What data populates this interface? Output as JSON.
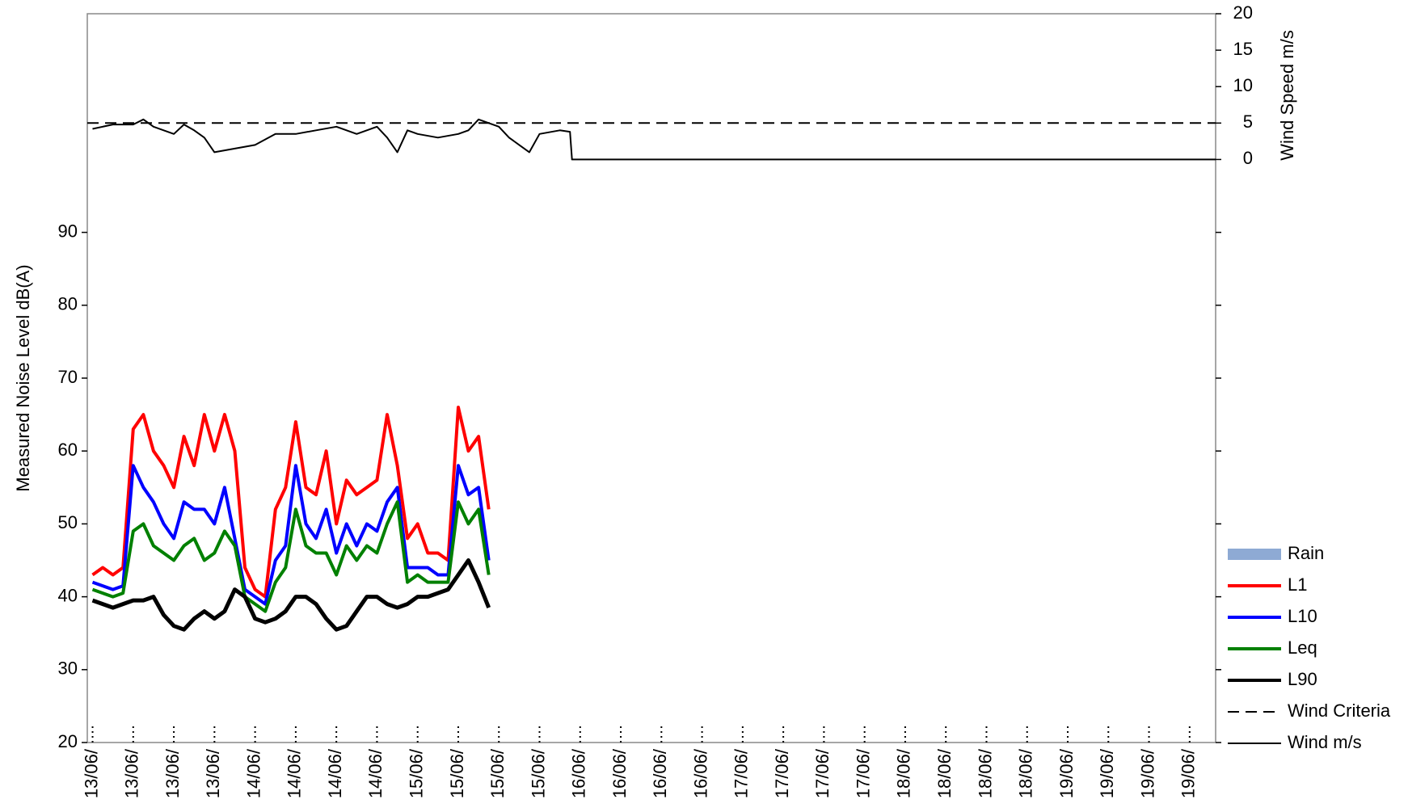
{
  "chart_data": {
    "type": "line",
    "ylabel": "Measured Noise Level dB(A)",
    "y2label": "Wind Speed m/s",
    "ylim": [
      20,
      120
    ],
    "yticks": [
      20,
      30,
      40,
      50,
      60,
      70,
      80,
      90
    ],
    "y2lim": [
      -80,
      20
    ],
    "y2ticks": [
      0,
      5,
      10,
      15,
      20
    ],
    "xlim": [
      -0.13,
      27.64
    ],
    "xticks": [
      {
        "value": 0,
        "label": "13/06/"
      },
      {
        "value": 1,
        "label": "13/06/"
      },
      {
        "value": 2,
        "label": "13/06/"
      },
      {
        "value": 3,
        "label": "13/06/"
      },
      {
        "value": 4,
        "label": "14/06/"
      },
      {
        "value": 5,
        "label": "14/06/"
      },
      {
        "value": 6,
        "label": "14/06/"
      },
      {
        "value": 7,
        "label": "14/06/"
      },
      {
        "value": 8,
        "label": "15/06/"
      },
      {
        "value": 9,
        "label": "15/06/"
      },
      {
        "value": 10,
        "label": "15/06/"
      },
      {
        "value": 11,
        "label": "15/06/"
      },
      {
        "value": 12,
        "label": "16/06/"
      },
      {
        "value": 13,
        "label": "16/06/"
      },
      {
        "value": 14,
        "label": "16/06/"
      },
      {
        "value": 15,
        "label": "16/06/"
      },
      {
        "value": 16,
        "label": "17/06/"
      },
      {
        "value": 17,
        "label": "17/06/"
      },
      {
        "value": 18,
        "label": "17/06/"
      },
      {
        "value": 19,
        "label": "17/06/"
      },
      {
        "value": 20,
        "label": "18/06/"
      },
      {
        "value": 21,
        "label": "18/06/"
      },
      {
        "value": 22,
        "label": "18/06/"
      },
      {
        "value": 23,
        "label": "18/06/"
      },
      {
        "value": 24,
        "label": "19/06/"
      },
      {
        "value": 25,
        "label": "19/06/"
      },
      {
        "value": 26,
        "label": "19/06/"
      },
      {
        "value": 27,
        "label": "19/06/"
      }
    ],
    "legend": "right",
    "series": [
      {
        "name": "Rain",
        "color": "#8eaad4",
        "x": [],
        "values": []
      },
      {
        "name": "L1",
        "color": "#ff0000",
        "width": 4,
        "x": [
          0,
          0.25,
          0.5,
          0.75,
          1,
          1.25,
          1.5,
          1.75,
          2,
          2.25,
          2.5,
          2.75,
          3,
          3.25,
          3.5,
          3.75,
          4,
          4.25,
          4.5,
          4.75,
          5,
          5.25,
          5.5,
          5.75,
          6,
          6.25,
          6.5,
          6.75,
          7,
          7.25,
          7.5,
          7.75,
          8,
          8.25,
          8.5,
          8.75,
          9,
          9.25,
          9.5,
          9.75
        ],
        "values": [
          43,
          44,
          43,
          44,
          63,
          65,
          60,
          58,
          55,
          62,
          58,
          65,
          60,
          65,
          60,
          44,
          41,
          40,
          52,
          55,
          64,
          55,
          54,
          60,
          50,
          56,
          54,
          55,
          56,
          65,
          58,
          48,
          50,
          46,
          46,
          45,
          66,
          60,
          62,
          52
        ]
      },
      {
        "name": "L10",
        "color": "#0000ff",
        "width": 4,
        "x": [
          0,
          0.25,
          0.5,
          0.75,
          1,
          1.25,
          1.5,
          1.75,
          2,
          2.25,
          2.5,
          2.75,
          3,
          3.25,
          3.5,
          3.75,
          4,
          4.25,
          4.5,
          4.75,
          5,
          5.25,
          5.5,
          5.75,
          6,
          6.25,
          6.5,
          6.75,
          7,
          7.25,
          7.5,
          7.75,
          8,
          8.25,
          8.5,
          8.75,
          9,
          9.25,
          9.5,
          9.75
        ],
        "values": [
          42,
          41.5,
          41,
          41.5,
          58,
          55,
          53,
          50,
          48,
          53,
          52,
          52,
          50,
          55,
          48,
          41,
          40,
          39,
          45,
          47,
          58,
          50,
          48,
          52,
          46,
          50,
          47,
          50,
          49,
          53,
          55,
          44,
          44,
          44,
          43,
          43,
          58,
          54,
          55,
          45
        ]
      },
      {
        "name": "Leq",
        "color": "#008000",
        "width": 4,
        "x": [
          0,
          0.25,
          0.5,
          0.75,
          1,
          1.25,
          1.5,
          1.75,
          2,
          2.25,
          2.5,
          2.75,
          3,
          3.25,
          3.5,
          3.75,
          4,
          4.25,
          4.5,
          4.75,
          5,
          5.25,
          5.5,
          5.75,
          6,
          6.25,
          6.5,
          6.75,
          7,
          7.25,
          7.5,
          7.75,
          8,
          8.25,
          8.5,
          8.75,
          9,
          9.25,
          9.5,
          9.75
        ],
        "values": [
          41,
          40.5,
          40,
          40.5,
          49,
          50,
          47,
          46,
          45,
          47,
          48,
          45,
          46,
          49,
          47,
          40,
          39,
          38,
          42,
          44,
          52,
          47,
          46,
          46,
          43,
          47,
          45,
          47,
          46,
          50,
          53,
          42,
          43,
          42,
          42,
          42,
          53,
          50,
          52,
          43
        ]
      },
      {
        "name": "L90",
        "color": "#000000",
        "width": 5,
        "x": [
          0,
          0.25,
          0.5,
          0.75,
          1,
          1.25,
          1.5,
          1.75,
          2,
          2.25,
          2.5,
          2.75,
          3,
          3.25,
          3.5,
          3.75,
          4,
          4.25,
          4.5,
          4.75,
          5,
          5.25,
          5.5,
          5.75,
          6,
          6.25,
          6.5,
          6.75,
          7,
          7.25,
          7.5,
          7.75,
          8,
          8.25,
          8.5,
          8.75,
          9,
          9.25,
          9.5,
          9.75
        ],
        "values": [
          39.5,
          39,
          38.5,
          39,
          39.5,
          39.5,
          40,
          37.5,
          36,
          35.5,
          37,
          38,
          37,
          38,
          41,
          40,
          37,
          36.5,
          37,
          38,
          40,
          40,
          39,
          37,
          35.5,
          36,
          38,
          40,
          40,
          39,
          38.5,
          39,
          40,
          40,
          40.5,
          41,
          43,
          45,
          42,
          38.5
        ]
      },
      {
        "name": "Wind Criteria",
        "color": "#000000",
        "width": 2,
        "dashed": true,
        "axis": "y2",
        "x": [
          -0.13,
          27.64
        ],
        "values": [
          5,
          5
        ]
      },
      {
        "name": "Wind m/s",
        "color": "#000000",
        "width": 2,
        "axis": "y2",
        "x": [
          0,
          0.5,
          1,
          1.25,
          1.5,
          2,
          2.25,
          2.5,
          2.75,
          3,
          3.5,
          4,
          4.5,
          5,
          5.5,
          6,
          6.5,
          7,
          7.25,
          7.5,
          7.75,
          8,
          8.5,
          9,
          9.25,
          9.5,
          10,
          10.25,
          10.5,
          10.75,
          11,
          11.5,
          11.75,
          11.8,
          27.64
        ],
        "values": [
          4.2,
          4.8,
          4.8,
          5.5,
          4.5,
          3.5,
          4.8,
          4,
          3,
          1,
          1.5,
          2,
          3.5,
          3.5,
          4,
          4.5,
          3.5,
          4.5,
          3,
          1,
          4,
          3.5,
          3,
          3.5,
          4,
          5.5,
          4.5,
          3,
          2,
          1,
          3.5,
          4,
          3.8,
          0,
          0
        ]
      }
    ]
  }
}
